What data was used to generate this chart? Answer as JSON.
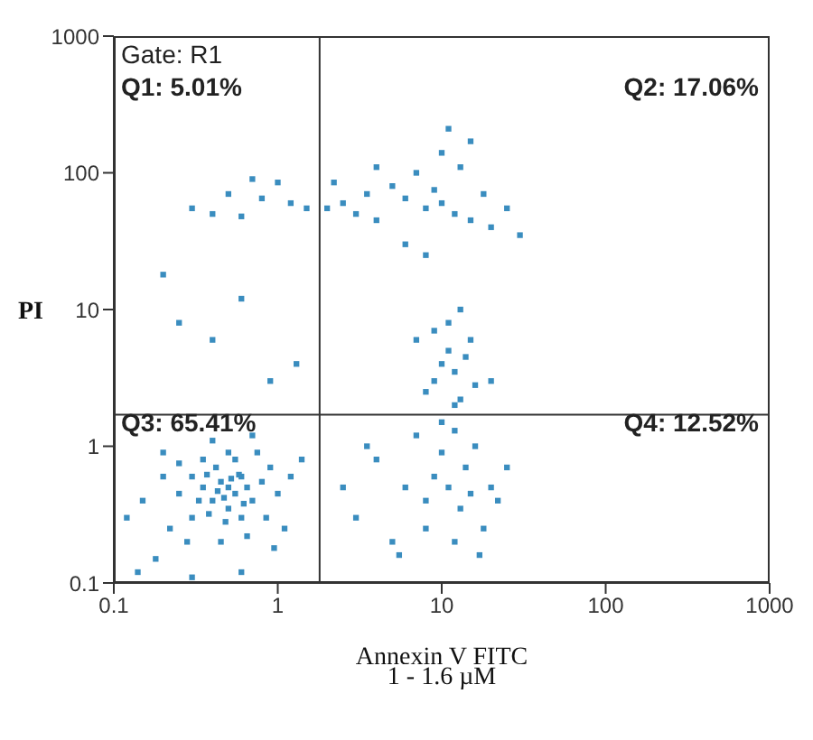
{
  "chart_data": {
    "type": "scatter",
    "xlabel": "Annexin V FITC",
    "ylabel": "PI",
    "log": "xy",
    "marker": "square",
    "grid": false,
    "legend": false,
    "xlim": [
      0.1,
      1000
    ],
    "xticks": [
      0.1,
      1,
      10,
      100,
      1000
    ],
    "ylim": [
      0.1,
      1000
    ],
    "yticks": [
      0.1,
      1,
      10,
      100,
      1000
    ],
    "annotations": [
      "Gate: R1",
      "Q1: 5.01%",
      "Q2: 17.06%",
      "Q3: 65.41%",
      "Q4: 12.52%",
      "1 - 1.6 µM"
    ],
    "ref_lines": [
      {
        "axis": "x",
        "value": 1.8,
        "color": "#333333"
      },
      {
        "axis": "y",
        "value": 1.7,
        "color": "#333333"
      }
    ],
    "series": [
      {
        "color": "#3a8dbf",
        "x": [
          0.5,
          0.45,
          0.55,
          0.4,
          0.6,
          0.35,
          0.5,
          0.65,
          0.3,
          0.42,
          0.7,
          0.55,
          0.48,
          0.38,
          0.25,
          0.8,
          0.6,
          0.3,
          0.22,
          0.9,
          0.75,
          0.35,
          0.2,
          0.15,
          0.28,
          0.45,
          0.65,
          1.0,
          1.2,
          0.18,
          0.12,
          0.5,
          0.4,
          0.7,
          1.4,
          0.33,
          0.58,
          0.47,
          0.52,
          0.43,
          0.62,
          0.37,
          0.85,
          1.1,
          0.25,
          0.14,
          0.3,
          0.6,
          0.95,
          0.2,
          2.5,
          3,
          4,
          5,
          5.5,
          6,
          7,
          8,
          9,
          10,
          11,
          12,
          13,
          14,
          15,
          16,
          18,
          20,
          22,
          25,
          8,
          12,
          3.5,
          10,
          17,
          8,
          9,
          10,
          11,
          12,
          13,
          14,
          15,
          11,
          13,
          9,
          16,
          12,
          7,
          20,
          2,
          2.5,
          3,
          3.5,
          4,
          5,
          6,
          7,
          8,
          9,
          10,
          12,
          13,
          15,
          18,
          20,
          25,
          30,
          6,
          8,
          4,
          11,
          15,
          2.2,
          10,
          0.3,
          0.4,
          0.5,
          0.6,
          0.8,
          1.0,
          1.2,
          1.5,
          0.7,
          0.2,
          0.25,
          0.4,
          0.6,
          0.9,
          1.3
        ],
        "values": [
          0.5,
          0.55,
          0.45,
          0.4,
          0.6,
          0.5,
          0.35,
          0.5,
          0.6,
          0.7,
          0.4,
          0.8,
          0.28,
          0.32,
          0.45,
          0.55,
          0.3,
          0.3,
          0.25,
          0.7,
          0.9,
          0.8,
          0.6,
          0.4,
          0.2,
          0.2,
          0.22,
          0.45,
          0.6,
          0.15,
          0.3,
          0.9,
          1.1,
          1.2,
          0.8,
          0.4,
          0.62,
          0.42,
          0.58,
          0.47,
          0.38,
          0.62,
          0.3,
          0.25,
          0.75,
          0.12,
          0.11,
          0.12,
          0.18,
          0.9,
          0.5,
          0.3,
          0.8,
          0.2,
          0.16,
          0.5,
          1.2,
          0.4,
          0.6,
          0.9,
          0.5,
          1.3,
          0.35,
          0.7,
          0.45,
          1.0,
          0.25,
          0.5,
          0.4,
          0.7,
          0.25,
          0.2,
          1.0,
          1.5,
          0.16,
          2.5,
          3,
          4,
          5,
          3.5,
          2.2,
          4.5,
          6,
          8,
          10,
          7,
          2.8,
          2,
          6,
          3,
          55,
          60,
          50,
          70,
          45,
          80,
          65,
          100,
          55,
          75,
          60,
          50,
          110,
          45,
          70,
          40,
          55,
          35,
          30,
          25,
          110,
          210,
          170,
          85,
          140,
          55,
          50,
          70,
          48,
          65,
          85,
          60,
          55,
          90,
          18,
          8,
          6,
          12,
          3,
          4
        ]
      }
    ]
  }
}
